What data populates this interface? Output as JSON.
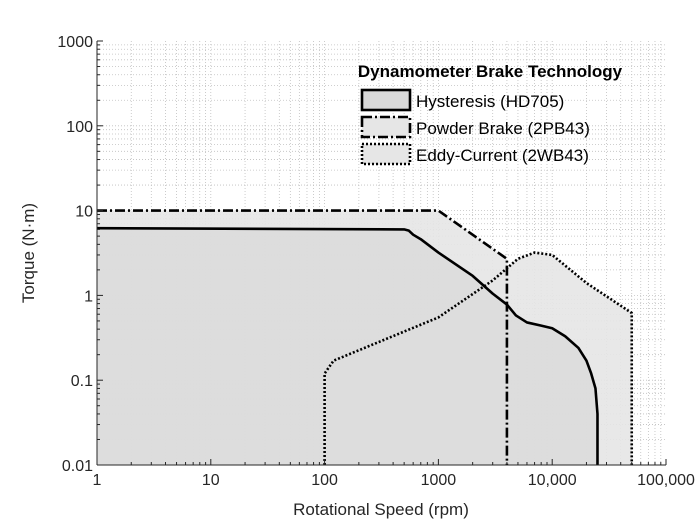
{
  "chart_data": {
    "type": "area",
    "xscale": "log",
    "yscale": "log",
    "xlim": [
      1,
      100000
    ],
    "ylim": [
      0.01,
      1000
    ],
    "xlabel": "Rotational Speed (rpm)",
    "ylabel": "Torque (N·m)",
    "xticklabels": [
      "1",
      "10",
      "100",
      "1000",
      "10,000",
      "100,000"
    ],
    "yticklabels": [
      "0.01",
      "0.1",
      "1",
      "10",
      "100",
      "1000"
    ],
    "grid": "minor dotted",
    "legend": {
      "title": "Dynamometer Brake Technology",
      "placement": "top-right"
    },
    "series": [
      {
        "name": "Powder Brake (2PB43)",
        "line_style": "dashdot",
        "fill": "#e6e6e6",
        "x": [
          1,
          1000,
          4000,
          4000
        ],
        "y": [
          10,
          10,
          2.7,
          0.01
        ]
      },
      {
        "name": "Eddy-Current (2WB43)",
        "line_style": "dotted",
        "fill": "#e6e6e6",
        "x": [
          100,
          100,
          120,
          1000,
          3000,
          5000,
          7000,
          10000,
          20000,
          50000,
          50000
        ],
        "y": [
          0.01,
          0.12,
          0.17,
          0.55,
          1.5,
          2.7,
          3.2,
          3.0,
          1.4,
          0.62,
          0.01
        ]
      },
      {
        "name": "Hysteresis (HD705)",
        "line_style": "solid",
        "fill": "#d9d9d9",
        "x": [
          1,
          500,
          550,
          600,
          700,
          1000,
          2000,
          3000,
          4000,
          4800,
          6000,
          8000,
          10000,
          13000,
          17000,
          20000,
          22000,
          24000,
          25000,
          25000
        ],
        "y": [
          6.2,
          6,
          5.8,
          5.2,
          4.6,
          3.2,
          1.7,
          1.05,
          0.78,
          0.58,
          0.48,
          0.44,
          0.41,
          0.33,
          0.24,
          0.17,
          0.12,
          0.08,
          0.04,
          0.01
        ]
      }
    ]
  },
  "colors": {
    "background": "#ffffff",
    "fill_light": "#e6e6e6",
    "fill_dark": "#d9d9d9",
    "line": "#000000",
    "axis": "#262626",
    "grid": "#bfbfbf"
  }
}
